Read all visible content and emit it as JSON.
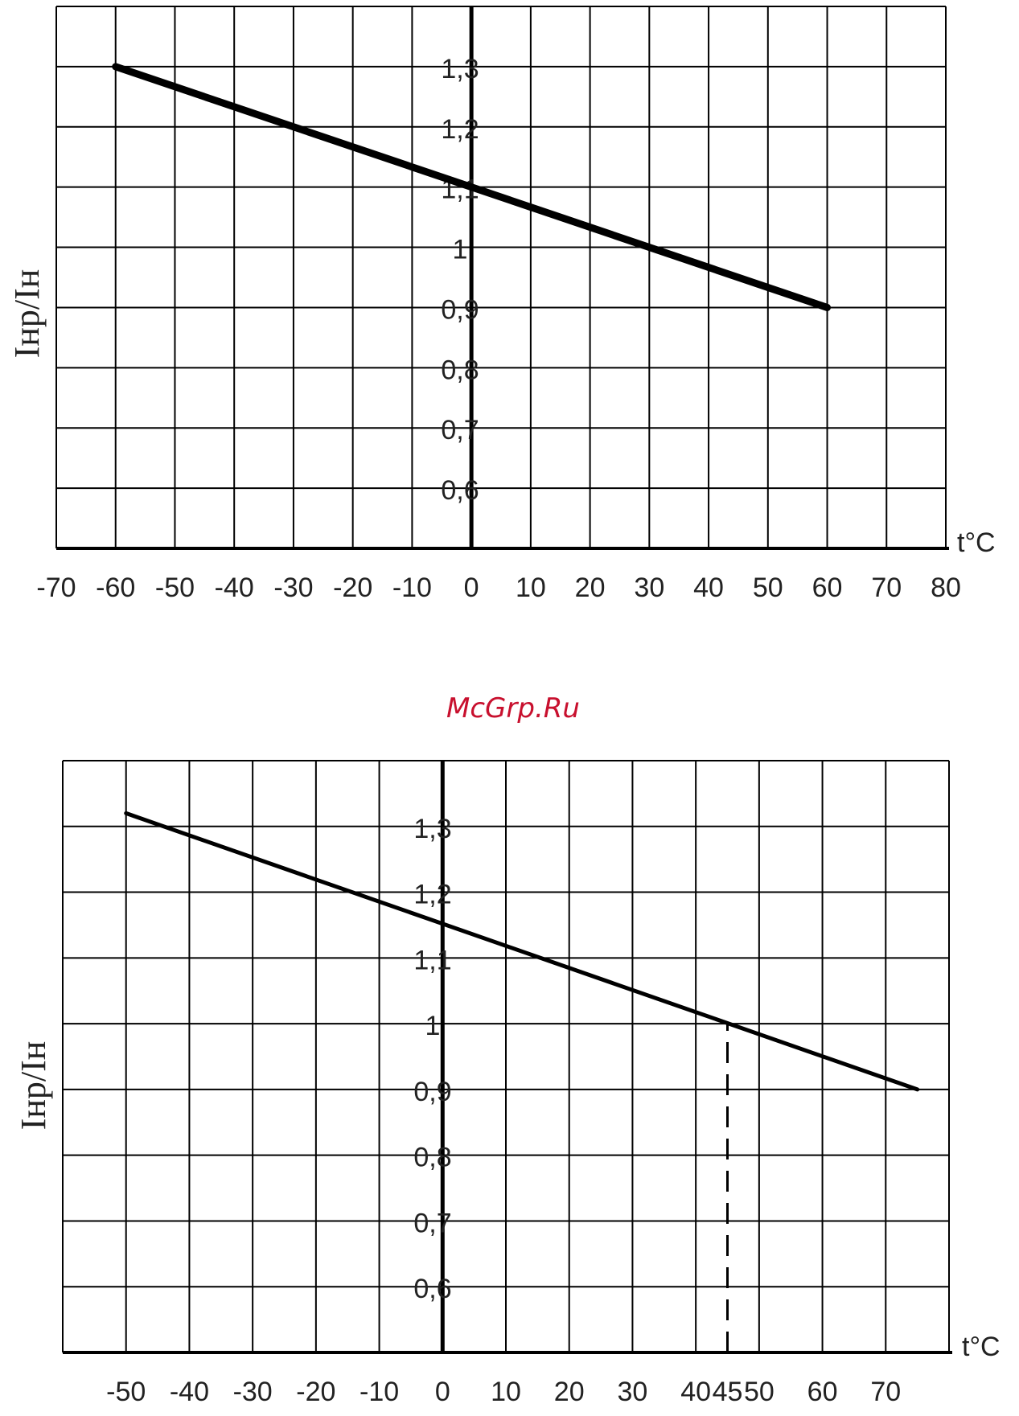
{
  "watermark": "McGrp.Ru",
  "colors": {
    "line": "#000000",
    "grid": "#000000",
    "watermark": "#c8102e"
  },
  "chart_data": [
    {
      "type": "line",
      "ylabel": "Iнр/Iн",
      "xunit": "t°C",
      "xticks": [
        -70,
        -60,
        -50,
        -40,
        -30,
        -20,
        -10,
        0,
        10,
        20,
        30,
        40,
        50,
        60,
        70,
        80
      ],
      "xtick_labels": [
        "-70",
        "-60",
        "-50",
        "-40",
        "-30",
        "-20",
        "-10",
        "0",
        "10",
        "20",
        "30",
        "40",
        "50",
        "60",
        "70",
        "80"
      ],
      "yticks": [
        1.3,
        1.2,
        1.1,
        1.0,
        0.9,
        0.8,
        0.7,
        0.6
      ],
      "ytick_labels": [
        "1,3",
        "1,2",
        "1,1",
        "1",
        "0,9",
        "0,8",
        "0,7",
        "0,6"
      ],
      "xlim": [
        -70,
        80
      ],
      "ylim": [
        0.5,
        1.4
      ],
      "grid": true,
      "series": [
        {
          "x": [
            -60,
            60
          ],
          "y": [
            1.3,
            0.9
          ]
        }
      ]
    },
    {
      "type": "line",
      "ylabel": "Iнр/Iн",
      "xunit": "t°C",
      "xticks": [
        -50,
        -40,
        -30,
        -20,
        -10,
        0,
        10,
        20,
        30,
        40,
        45,
        50,
        60,
        70
      ],
      "xtick_labels": [
        "-50",
        "-40",
        "-30",
        "-20",
        "-10",
        "0",
        "10",
        "20",
        "30",
        "40",
        "45",
        "50",
        "60",
        "70"
      ],
      "yticks": [
        1.3,
        1.2,
        1.1,
        1.0,
        0.9,
        0.8,
        0.7,
        0.6
      ],
      "ytick_labels": [
        "1,3",
        "1,2",
        "1,1",
        "1",
        "0,9",
        "0,8",
        "0,7",
        "0,6"
      ],
      "xlim": [
        -60,
        80
      ],
      "ylim": [
        0.5,
        1.4
      ],
      "grid": true,
      "series": [
        {
          "x": [
            -50,
            75
          ],
          "y": [
            1.32,
            0.9
          ]
        }
      ],
      "marker_line": {
        "x": 45,
        "y_from": 0.5,
        "y_to": 1.0,
        "style": "dashed"
      }
    }
  ]
}
